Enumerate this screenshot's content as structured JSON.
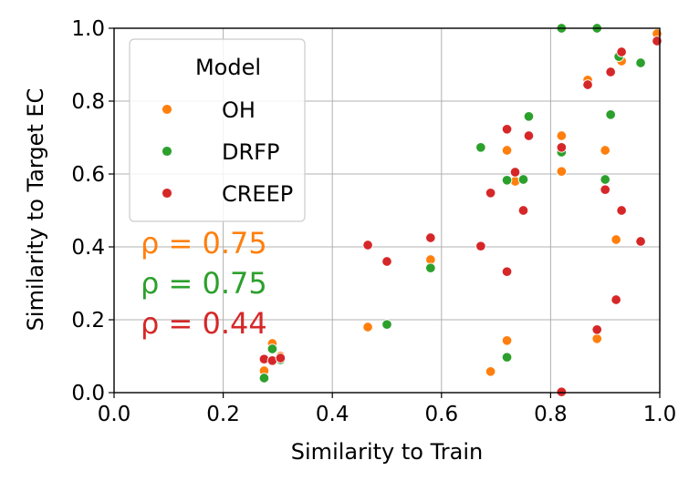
{
  "chart_data": {
    "type": "scatter",
    "title": "",
    "xlabel": "Similarity to Train",
    "ylabel": "Similarity to Target EC",
    "xlim": [
      0.0,
      1.0
    ],
    "ylim": [
      0.0,
      1.0
    ],
    "xticks": [
      "0.0",
      "0.2",
      "0.4",
      "0.6",
      "0.8",
      "1.0"
    ],
    "yticks": [
      "0.0",
      "0.2",
      "0.4",
      "0.6",
      "0.8",
      "1.0"
    ],
    "grid": true,
    "legend": {
      "title": "Model",
      "position": "upper-left"
    },
    "series": [
      {
        "name": "OH",
        "color": "#ff7f0e",
        "points": [
          [
            0.275,
            0.06
          ],
          [
            0.29,
            0.135
          ],
          [
            0.305,
            0.1
          ],
          [
            0.465,
            0.18
          ],
          [
            0.58,
            0.365
          ],
          [
            0.69,
            0.058
          ],
          [
            0.72,
            0.143
          ],
          [
            0.72,
            0.665
          ],
          [
            0.735,
            0.58
          ],
          [
            0.82,
            0.705
          ],
          [
            0.82,
            0.607
          ],
          [
            0.868,
            0.858
          ],
          [
            0.885,
            0.148
          ],
          [
            0.9,
            0.665
          ],
          [
            0.92,
            0.42
          ],
          [
            0.93,
            0.91
          ],
          [
            0.995,
            0.985
          ]
        ],
        "rho_label": "ρ = 0.75"
      },
      {
        "name": "DRFP",
        "color": "#2ca02c",
        "points": [
          [
            0.275,
            0.04
          ],
          [
            0.29,
            0.12
          ],
          [
            0.305,
            0.09
          ],
          [
            0.5,
            0.187
          ],
          [
            0.58,
            0.342
          ],
          [
            0.672,
            0.673
          ],
          [
            0.72,
            0.583
          ],
          [
            0.72,
            0.097
          ],
          [
            0.75,
            0.585
          ],
          [
            0.76,
            0.758
          ],
          [
            0.82,
            0.66
          ],
          [
            0.82,
            1.0
          ],
          [
            0.885,
            1.0
          ],
          [
            0.9,
            0.585
          ],
          [
            0.91,
            0.763
          ],
          [
            0.925,
            0.922
          ],
          [
            0.965,
            0.905
          ]
        ],
        "rho_label": "ρ = 0.75"
      },
      {
        "name": "CREEP",
        "color": "#d62728",
        "points": [
          [
            0.275,
            0.092
          ],
          [
            0.29,
            0.088
          ],
          [
            0.305,
            0.095
          ],
          [
            0.465,
            0.405
          ],
          [
            0.5,
            0.36
          ],
          [
            0.58,
            0.425
          ],
          [
            0.672,
            0.402
          ],
          [
            0.69,
            0.548
          ],
          [
            0.72,
            0.332
          ],
          [
            0.72,
            0.723
          ],
          [
            0.735,
            0.605
          ],
          [
            0.75,
            0.5
          ],
          [
            0.76,
            0.705
          ],
          [
            0.82,
            0.673
          ],
          [
            0.82,
            0.002
          ],
          [
            0.868,
            0.845
          ],
          [
            0.885,
            0.173
          ],
          [
            0.9,
            0.557
          ],
          [
            0.91,
            0.88
          ],
          [
            0.92,
            0.255
          ],
          [
            0.93,
            0.5
          ],
          [
            0.93,
            0.935
          ],
          [
            0.965,
            0.415
          ],
          [
            0.995,
            0.965
          ]
        ],
        "rho_label": "ρ = 0.44"
      }
    ]
  }
}
